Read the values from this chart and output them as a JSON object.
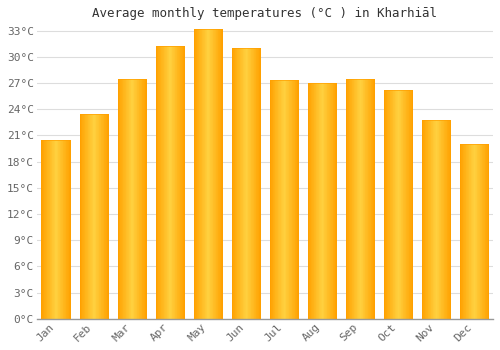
{
  "title": "Average monthly temperatures (°C ) in Kharhiāl",
  "months": [
    "Jan",
    "Feb",
    "Mar",
    "Apr",
    "May",
    "Jun",
    "Jul",
    "Aug",
    "Sep",
    "Oct",
    "Nov",
    "Dec"
  ],
  "temperatures": [
    20.5,
    23.5,
    27.5,
    31.2,
    33.2,
    31.0,
    27.3,
    27.0,
    27.5,
    26.2,
    22.8,
    20.0
  ],
  "bar_color_center": "#FFD050",
  "bar_color_edge": "#FFA000",
  "background_color": "#FFFFFF",
  "grid_color": "#DDDDDD",
  "ytick_step": 3,
  "ymax": 33,
  "ymin": 0,
  "title_fontsize": 9,
  "tick_fontsize": 8
}
